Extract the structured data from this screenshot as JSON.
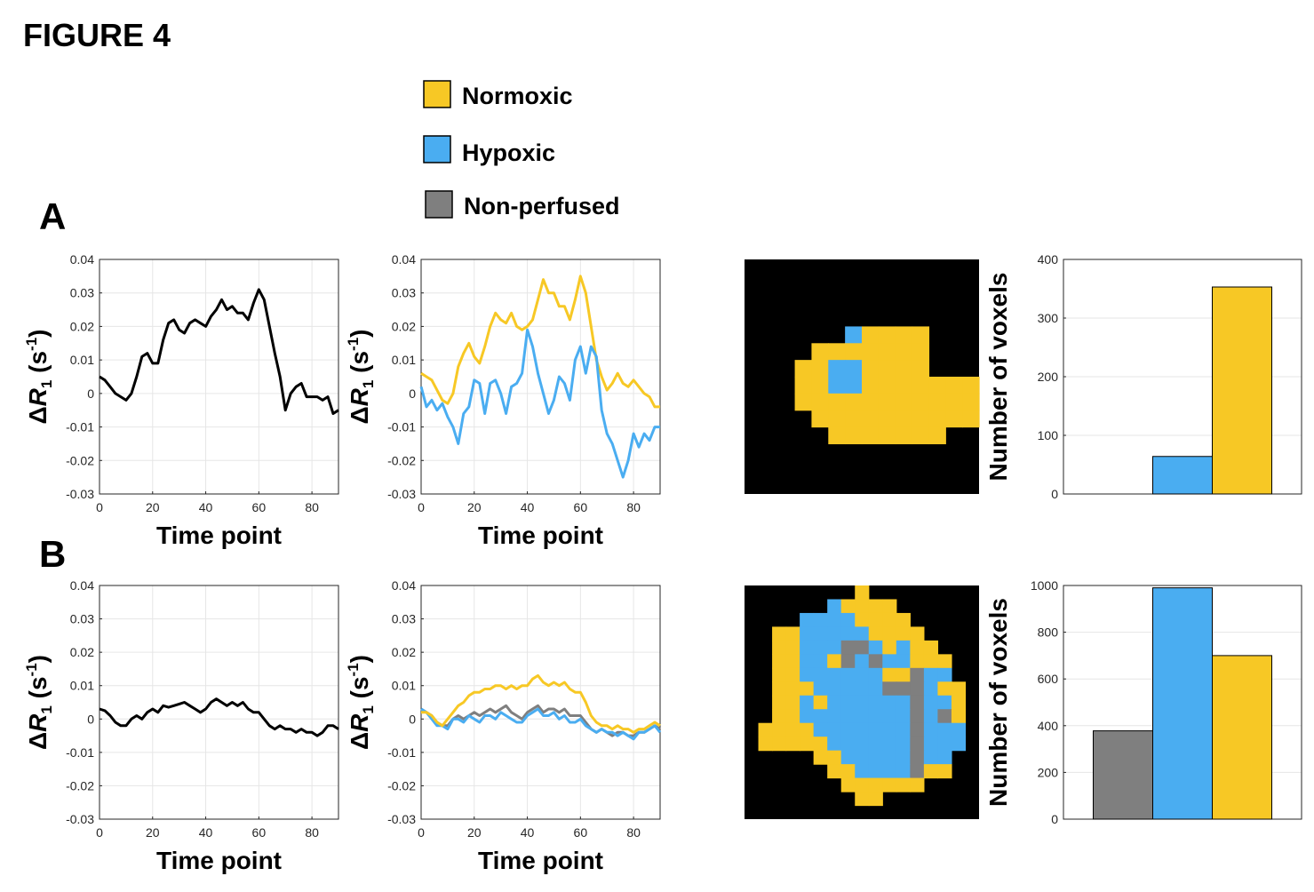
{
  "figure_title": "FIGURE 4",
  "panel_labels": {
    "a": "A",
    "b": "B"
  },
  "legend": [
    {
      "label": "Normoxic",
      "color": "#F7C825"
    },
    {
      "label": "Hypoxic",
      "color": "#4AADF1"
    },
    {
      "label": "Non-perfused",
      "color": "#7F7F7F"
    }
  ],
  "colors": {
    "normoxic": "#F7C825",
    "hypoxic": "#4AADF1",
    "nonperfused": "#7F7F7F",
    "mean": "#000000",
    "map_background": "#000000"
  },
  "chart_data": [
    {
      "id": "A1",
      "type": "line",
      "xlabel": "Time point",
      "ylabel": "ΔR1 (s-1)",
      "xlim": [
        0,
        90
      ],
      "ylim": [
        -0.03,
        0.04
      ],
      "xticks": [
        0,
        20,
        40,
        60,
        80
      ],
      "yticks": [
        -0.03,
        -0.02,
        -0.01,
        0,
        0.01,
        0.02,
        0.03,
        0.04
      ],
      "ytick_labels": [
        "-0.03",
        "-0.02",
        "-0.01",
        "0",
        "0.01",
        "0.02",
        "0.03",
        "0.04"
      ],
      "grid": true,
      "series": [
        {
          "color": "#000000",
          "x": [
            0,
            2,
            4,
            6,
            8,
            10,
            12,
            14,
            16,
            18,
            20,
            22,
            24,
            26,
            28,
            30,
            32,
            34,
            36,
            38,
            40,
            42,
            44,
            46,
            48,
            50,
            52,
            54,
            56,
            58,
            60,
            62,
            64,
            66,
            68,
            70,
            72,
            74,
            76,
            78,
            80,
            82,
            84,
            86,
            88,
            90
          ],
          "y": [
            0.005,
            0.004,
            0.002,
            0.0,
            -0.001,
            -0.002,
            0.0,
            0.005,
            0.011,
            0.012,
            0.009,
            0.009,
            0.016,
            0.021,
            0.022,
            0.019,
            0.018,
            0.021,
            0.022,
            0.021,
            0.02,
            0.023,
            0.025,
            0.028,
            0.025,
            0.026,
            0.024,
            0.024,
            0.022,
            0.027,
            0.031,
            0.028,
            0.02,
            0.012,
            0.005,
            -0.005,
            0.0,
            0.002,
            0.003,
            -0.001,
            -0.001,
            -0.001,
            -0.002,
            -0.001,
            -0.006,
            -0.005
          ]
        }
      ]
    },
    {
      "id": "A2",
      "type": "line",
      "xlabel": "Time point",
      "ylabel": "ΔR1 (s-1)",
      "xlim": [
        0,
        90
      ],
      "ylim": [
        -0.03,
        0.04
      ],
      "xticks": [
        0,
        20,
        40,
        60,
        80
      ],
      "yticks": [
        -0.03,
        -0.02,
        -0.01,
        0,
        0.01,
        0.02,
        0.03,
        0.04
      ],
      "ytick_labels": [
        "-0.03",
        "-0.02",
        "-0.01",
        "0",
        "0.01",
        "0.02",
        "0.03",
        "0.04"
      ],
      "grid": true,
      "series": [
        {
          "color": "#F7C825",
          "x": [
            0,
            2,
            4,
            6,
            8,
            10,
            12,
            14,
            16,
            18,
            20,
            22,
            24,
            26,
            28,
            30,
            32,
            34,
            36,
            38,
            40,
            42,
            44,
            46,
            48,
            50,
            52,
            54,
            56,
            58,
            60,
            62,
            64,
            66,
            68,
            70,
            72,
            74,
            76,
            78,
            80,
            82,
            84,
            86,
            88,
            90
          ],
          "y": [
            0.006,
            0.005,
            0.004,
            0.001,
            -0.002,
            -0.003,
            0.0,
            0.008,
            0.012,
            0.015,
            0.011,
            0.009,
            0.014,
            0.02,
            0.024,
            0.022,
            0.021,
            0.024,
            0.02,
            0.019,
            0.02,
            0.022,
            0.028,
            0.034,
            0.03,
            0.03,
            0.026,
            0.026,
            0.022,
            0.028,
            0.035,
            0.03,
            0.02,
            0.01,
            0.005,
            0.001,
            0.003,
            0.006,
            0.003,
            0.002,
            0.004,
            0.002,
            0.0,
            -0.001,
            -0.004,
            -0.004
          ]
        },
        {
          "color": "#4AADF1",
          "x": [
            0,
            2,
            4,
            6,
            8,
            10,
            12,
            14,
            16,
            18,
            20,
            22,
            24,
            26,
            28,
            30,
            32,
            34,
            36,
            38,
            40,
            42,
            44,
            46,
            48,
            50,
            52,
            54,
            56,
            58,
            60,
            62,
            64,
            66,
            68,
            70,
            72,
            74,
            76,
            78,
            80,
            82,
            84,
            86,
            88,
            90
          ],
          "y": [
            0.002,
            -0.004,
            -0.002,
            -0.005,
            -0.003,
            -0.007,
            -0.01,
            -0.015,
            -0.006,
            -0.004,
            0.004,
            0.003,
            -0.006,
            0.003,
            0.004,
            0.0,
            -0.006,
            0.002,
            0.003,
            0.006,
            0.019,
            0.014,
            0.006,
            0.0,
            -0.006,
            -0.002,
            0.005,
            0.003,
            -0.002,
            0.01,
            0.014,
            0.006,
            0.014,
            0.011,
            -0.005,
            -0.012,
            -0.015,
            -0.02,
            -0.025,
            -0.02,
            -0.012,
            -0.016,
            -0.012,
            -0.014,
            -0.01,
            -0.01
          ]
        }
      ]
    },
    {
      "id": "A3",
      "type": "heatmap",
      "rows": 14,
      "cols": 14,
      "legend_codes": {
        "0": "background",
        "1": "Normoxic",
        "2": "Hypoxic",
        "3": "Non-perfused"
      },
      "cells": [
        "00000000000000",
        "00000000000000",
        "00000000000000",
        "00000000000000",
        "00000021111000",
        "00001111111000",
        "00011221111000",
        "00011221111111",
        "00011111111111",
        "00001111111111",
        "00000111111100",
        "00000000000000",
        "00000000000000",
        "00000000000000"
      ]
    },
    {
      "id": "A4",
      "type": "bar",
      "ylabel": "Number of voxels",
      "categories": [
        "Non-perfused",
        "Hypoxic",
        "Normoxic"
      ],
      "values": [
        0,
        64,
        353
      ],
      "colors": [
        "#7F7F7F",
        "#4AADF1",
        "#F7C825"
      ],
      "ylim": [
        0,
        400
      ],
      "yticks": [
        0,
        100,
        200,
        300,
        400
      ],
      "ytick_labels": [
        "0",
        "100",
        "200",
        "300",
        "400"
      ],
      "grid": true
    },
    {
      "id": "B1",
      "type": "line",
      "xlabel": "Time point",
      "ylabel": "ΔR1 (s-1)",
      "xlim": [
        0,
        90
      ],
      "ylim": [
        -0.03,
        0.04
      ],
      "xticks": [
        0,
        20,
        40,
        60,
        80
      ],
      "yticks": [
        -0.03,
        -0.02,
        -0.01,
        0,
        0.01,
        0.02,
        0.03,
        0.04
      ],
      "ytick_labels": [
        "-0.03",
        "-0.02",
        "-0.01",
        "0",
        "0.01",
        "0.02",
        "0.03",
        "0.04"
      ],
      "grid": true,
      "series": [
        {
          "color": "#000000",
          "x": [
            0,
            2,
            4,
            6,
            8,
            10,
            12,
            14,
            16,
            18,
            20,
            22,
            24,
            26,
            28,
            30,
            32,
            34,
            36,
            38,
            40,
            42,
            44,
            46,
            48,
            50,
            52,
            54,
            56,
            58,
            60,
            62,
            64,
            66,
            68,
            70,
            72,
            74,
            76,
            78,
            80,
            82,
            84,
            86,
            88,
            90
          ],
          "y": [
            0.003,
            0.0025,
            0.001,
            -0.001,
            -0.002,
            -0.002,
            0.0,
            0.001,
            0.0,
            0.002,
            0.003,
            0.002,
            0.004,
            0.0035,
            0.004,
            0.0045,
            0.005,
            0.004,
            0.003,
            0.002,
            0.003,
            0.005,
            0.006,
            0.005,
            0.004,
            0.005,
            0.004,
            0.005,
            0.003,
            0.002,
            0.002,
            0.0,
            -0.002,
            -0.003,
            -0.002,
            -0.003,
            -0.003,
            -0.004,
            -0.003,
            -0.004,
            -0.004,
            -0.005,
            -0.004,
            -0.002,
            -0.002,
            -0.003
          ]
        }
      ]
    },
    {
      "id": "B2",
      "type": "line",
      "xlabel": "Time point",
      "ylabel": "ΔR1 (s-1)",
      "xlim": [
        0,
        90
      ],
      "ylim": [
        -0.03,
        0.04
      ],
      "xticks": [
        0,
        20,
        40,
        60,
        80
      ],
      "yticks": [
        -0.03,
        -0.02,
        -0.01,
        0,
        0.01,
        0.02,
        0.03,
        0.04
      ],
      "ytick_labels": [
        "-0.03",
        "-0.02",
        "-0.01",
        "0",
        "0.01",
        "0.02",
        "0.03",
        "0.04"
      ],
      "grid": true,
      "series": [
        {
          "color": "#7F7F7F",
          "x": [
            0,
            2,
            4,
            6,
            8,
            10,
            12,
            14,
            16,
            18,
            20,
            22,
            24,
            26,
            28,
            30,
            32,
            34,
            36,
            38,
            40,
            42,
            44,
            46,
            48,
            50,
            52,
            54,
            56,
            58,
            60,
            62,
            64,
            66,
            68,
            70,
            72,
            74,
            76,
            78,
            80,
            82,
            84,
            86,
            88,
            90
          ],
          "y": [
            0.003,
            0.002,
            0.001,
            -0.001,
            -0.002,
            -0.002,
            0.0,
            0.001,
            0.0,
            0.001,
            0.002,
            0.001,
            0.002,
            0.003,
            0.002,
            0.003,
            0.004,
            0.002,
            0.001,
            0.0,
            0.002,
            0.003,
            0.004,
            0.002,
            0.003,
            0.003,
            0.002,
            0.003,
            0.001,
            0.001,
            0.001,
            -0.001,
            -0.003,
            -0.004,
            -0.003,
            -0.004,
            -0.005,
            -0.004,
            -0.004,
            -0.005,
            -0.005,
            -0.004,
            -0.004,
            -0.003,
            -0.002,
            -0.003
          ]
        },
        {
          "color": "#4AADF1",
          "x": [
            0,
            2,
            4,
            6,
            8,
            10,
            12,
            14,
            16,
            18,
            20,
            22,
            24,
            26,
            28,
            30,
            32,
            34,
            36,
            38,
            40,
            42,
            44,
            46,
            48,
            50,
            52,
            54,
            56,
            58,
            60,
            62,
            64,
            66,
            68,
            70,
            72,
            74,
            76,
            78,
            80,
            82,
            84,
            86,
            88,
            90
          ],
          "y": [
            0.003,
            0.002,
            0.0,
            -0.002,
            -0.002,
            -0.003,
            0.0,
            0.0,
            -0.001,
            0.001,
            0.0,
            -0.001,
            0.001,
            0.001,
            0.0,
            0.002,
            0.001,
            0.0,
            -0.001,
            -0.001,
            0.001,
            0.002,
            0.003,
            0.001,
            0.001,
            0.002,
            0.0,
            0.001,
            -0.001,
            -0.001,
            0.0,
            -0.002,
            -0.003,
            -0.004,
            -0.003,
            -0.004,
            -0.004,
            -0.005,
            -0.004,
            -0.005,
            -0.006,
            -0.004,
            -0.004,
            -0.003,
            -0.002,
            -0.004
          ]
        },
        {
          "color": "#F7C825",
          "x": [
            0,
            2,
            4,
            6,
            8,
            10,
            12,
            14,
            16,
            18,
            20,
            22,
            24,
            26,
            28,
            30,
            32,
            34,
            36,
            38,
            40,
            42,
            44,
            46,
            48,
            50,
            52,
            54,
            56,
            58,
            60,
            62,
            64,
            66,
            68,
            70,
            72,
            74,
            76,
            78,
            80,
            82,
            84,
            86,
            88,
            90
          ],
          "y": [
            0.002,
            0.002,
            0.001,
            -0.001,
            -0.002,
            0.0,
            0.002,
            0.004,
            0.005,
            0.007,
            0.008,
            0.008,
            0.009,
            0.009,
            0.01,
            0.01,
            0.009,
            0.01,
            0.009,
            0.01,
            0.01,
            0.012,
            0.013,
            0.011,
            0.01,
            0.011,
            0.01,
            0.011,
            0.009,
            0.008,
            0.008,
            0.005,
            0.001,
            -0.001,
            -0.002,
            -0.002,
            -0.003,
            -0.002,
            -0.003,
            -0.003,
            -0.004,
            -0.003,
            -0.003,
            -0.002,
            -0.001,
            -0.002
          ]
        }
      ]
    },
    {
      "id": "B3",
      "type": "heatmap",
      "rows": 17,
      "cols": 17,
      "legend_codes": {
        "0": "background",
        "1": "Normoxic",
        "2": "Hypoxic",
        "3": "Non-perfused"
      },
      "cells": [
        "00000000100000000",
        "00000021111000000",
        "00002222111100000",
        "00112222211110000",
        "00112223321211000",
        "00112213232211100",
        "00112222221132200",
        "00111222223332110",
        "00112122222232210",
        "00112222222232310",
        "01111222222232220",
        "01111122222232220",
        "00000112222232200",
        "00000011222231100",
        "00000001111110000",
        "00000000110000000",
        "00000000000000000"
      ]
    },
    {
      "id": "B4",
      "type": "bar",
      "ylabel": "Number of voxels",
      "categories": [
        "Non-perfused",
        "Hypoxic",
        "Normoxic"
      ],
      "values": [
        378,
        990,
        700
      ],
      "colors": [
        "#7F7F7F",
        "#4AADF1",
        "#F7C825"
      ],
      "ylim": [
        0,
        1000
      ],
      "yticks": [
        0,
        200,
        400,
        600,
        800,
        1000
      ],
      "ytick_labels": [
        "0",
        "200",
        "400",
        "600",
        "800",
        "1000"
      ],
      "grid": true
    }
  ]
}
